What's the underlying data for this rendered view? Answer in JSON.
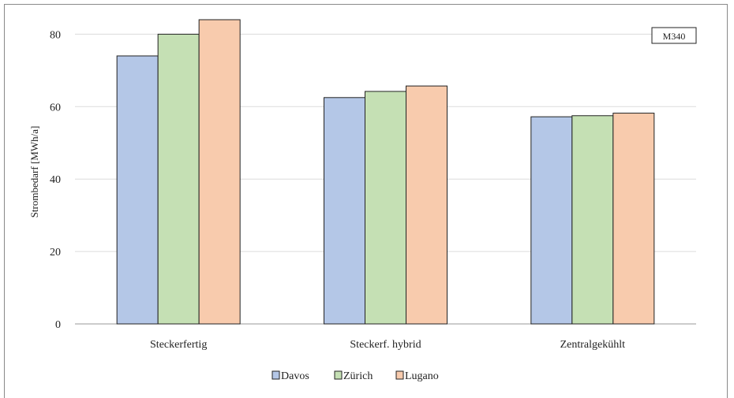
{
  "chart_data": {
    "type": "bar",
    "title": "",
    "xlabel": "",
    "ylabel": "Strombedarf [MWh/a]",
    "ylim": [
      0,
      84
    ],
    "yticks": [
      0,
      20,
      40,
      60,
      80
    ],
    "grid": true,
    "legend_position": "bottom",
    "annotation": "M340",
    "categories": [
      "Steckerfertig",
      "Steckerf. hybrid",
      "Zentralgekühlt"
    ],
    "series": [
      {
        "name": "Davos",
        "values": [
          74,
          62.5,
          57.2
        ],
        "color": "#b4c7e7"
      },
      {
        "name": "Zürich",
        "values": [
          80,
          64.2,
          57.5
        ],
        "color": "#c5e0b4"
      },
      {
        "name": "Lugano",
        "values": [
          84,
          65.7,
          58.2
        ],
        "color": "#f8cbad"
      }
    ]
  }
}
